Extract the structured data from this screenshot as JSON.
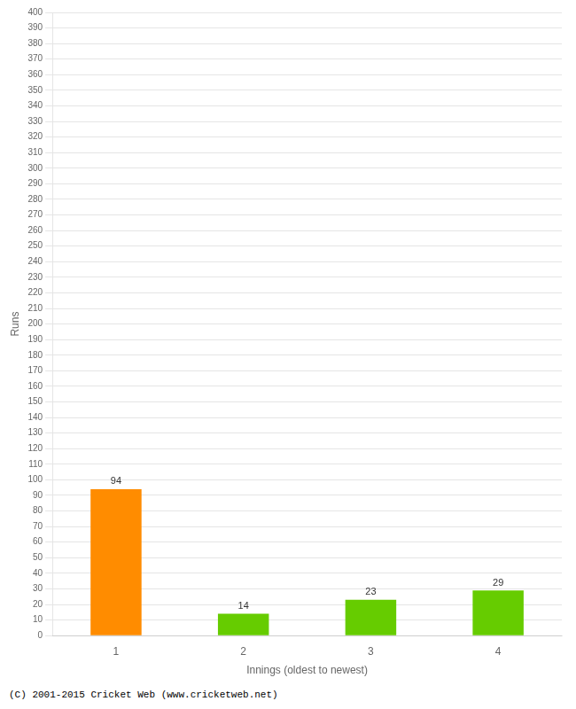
{
  "chart_data": {
    "type": "bar",
    "categories": [
      "1",
      "2",
      "3",
      "4"
    ],
    "values": [
      94,
      14,
      23,
      29
    ],
    "colors": [
      "#ff8c00",
      "#66cc00",
      "#66cc00",
      "#66cc00"
    ],
    "xlabel": "Innings (oldest to newest)",
    "ylabel": "Runs",
    "ylim": [
      0,
      400
    ],
    "yticks": [
      0,
      10,
      20,
      30,
      40,
      50,
      60,
      70,
      80,
      90,
      100,
      110,
      120,
      130,
      140,
      150,
      160,
      170,
      180,
      190,
      200,
      210,
      220,
      230,
      240,
      250,
      260,
      270,
      280,
      290,
      300,
      310,
      320,
      330,
      340,
      350,
      360,
      370,
      380,
      390,
      400
    ],
    "grid": true,
    "data_labels": true,
    "annotations": [
      "(C) 2001-2015 Cricket Web (www.cricketweb.net)"
    ]
  }
}
